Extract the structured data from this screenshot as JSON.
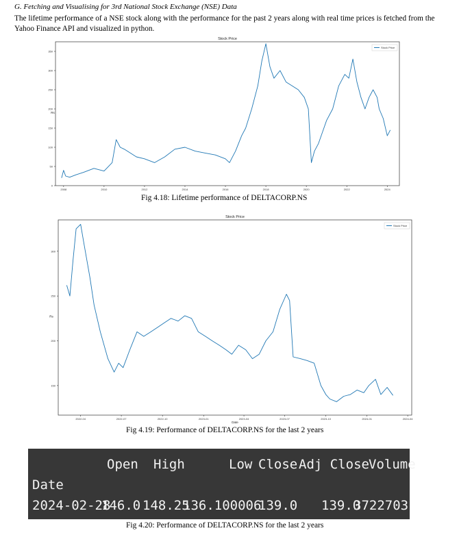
{
  "section": {
    "heading": "G.   Fetching and Visualising for 3rd National Stock Exchange (NSE) Data",
    "paragraph": "The lifetime performance of a NSE stock along with the performance for the past 2 years along with real time prices is fetched from the Yahoo Finance API and visualized in python."
  },
  "captions": {
    "fig1": "Fig 4.18: Lifetime performance of DELTACORP.NS",
    "fig2": "Fig 4.19: Performance of DELTACORP.NS for the last 2 years",
    "fig3": "Fig 4.20: Performance of DELTACORP.NS for the last 2 years"
  },
  "chart_data": [
    {
      "type": "line",
      "title": "Stock Price",
      "xlabel": "",
      "ylabel": "Rs",
      "legend": "top-right",
      "legend_label": "Stock Price",
      "color": "#1f77b4",
      "grid": false,
      "xlim": [
        2007.6,
        2024.6
      ],
      "ylim": [
        0,
        375
      ],
      "x_ticks": [
        "2008",
        "2010",
        "2012",
        "2014",
        "2016",
        "2018",
        "2020",
        "2022",
        "2024"
      ],
      "y_ticks": [
        0,
        50,
        100,
        150,
        200,
        250,
        300,
        350
      ],
      "x": [
        2007.9,
        2008.0,
        2008.1,
        2008.3,
        2008.6,
        2009.0,
        2009.5,
        2010.0,
        2010.4,
        2010.6,
        2010.8,
        2011.0,
        2011.3,
        2011.6,
        2012.0,
        2012.5,
        2013.0,
        2013.5,
        2014.0,
        2014.5,
        2015.0,
        2015.5,
        2016.0,
        2016.2,
        2016.5,
        2016.8,
        2017.0,
        2017.3,
        2017.6,
        2017.8,
        2018.0,
        2018.2,
        2018.4,
        2018.7,
        2019.0,
        2019.3,
        2019.6,
        2019.9,
        2020.1,
        2020.25,
        2020.4,
        2020.6,
        2020.8,
        2021.0,
        2021.3,
        2021.6,
        2021.9,
        2022.1,
        2022.3,
        2022.5,
        2022.7,
        2022.9,
        2023.1,
        2023.3,
        2023.5,
        2023.6,
        2023.8,
        2024.0,
        2024.15
      ],
      "y": [
        20,
        40,
        25,
        22,
        28,
        35,
        45,
        38,
        60,
        120,
        100,
        95,
        85,
        75,
        70,
        60,
        75,
        95,
        100,
        90,
        85,
        80,
        70,
        60,
        90,
        130,
        150,
        200,
        260,
        325,
        370,
        310,
        280,
        300,
        270,
        260,
        250,
        230,
        200,
        60,
        90,
        110,
        140,
        170,
        200,
        260,
        290,
        280,
        330,
        270,
        230,
        200,
        230,
        250,
        230,
        200,
        175,
        130,
        145
      ]
    },
    {
      "type": "line",
      "title": "Stock Price",
      "xlabel": "Date",
      "ylabel": "Rs",
      "legend": "top-right",
      "legend_label": "Stock Price",
      "color": "#1f77b4",
      "grid": false,
      "xlim": [
        "2022-02-10",
        "2024-04-10"
      ],
      "ylim": [
        117,
        335
      ],
      "x_ticks": [
        "2022-04",
        "2022-07",
        "2022-10",
        "2023-01",
        "2023-04",
        "2023-07",
        "2023-10",
        "2024-01",
        "2024-04"
      ],
      "y_ticks": [
        150,
        200,
        250,
        300
      ],
      "x": [
        "2022-03-01",
        "2022-03-08",
        "2022-03-15",
        "2022-03-22",
        "2022-04-01",
        "2022-04-08",
        "2022-04-15",
        "2022-04-22",
        "2022-05-01",
        "2022-05-15",
        "2022-06-01",
        "2022-06-15",
        "2022-06-25",
        "2022-07-05",
        "2022-07-20",
        "2022-08-05",
        "2022-08-20",
        "2022-09-05",
        "2022-09-20",
        "2022-10-05",
        "2022-10-20",
        "2022-11-05",
        "2022-11-20",
        "2022-12-05",
        "2022-12-20",
        "2023-01-05",
        "2023-01-20",
        "2023-02-05",
        "2023-02-20",
        "2023-03-05",
        "2023-03-20",
        "2023-04-05",
        "2023-04-20",
        "2023-05-05",
        "2023-05-20",
        "2023-06-05",
        "2023-06-20",
        "2023-07-05",
        "2023-07-12",
        "2023-07-20",
        "2023-08-05",
        "2023-08-20",
        "2023-09-05",
        "2023-09-20",
        "2023-10-01",
        "2023-10-10",
        "2023-10-25",
        "2023-11-10",
        "2023-11-25",
        "2023-12-10",
        "2023-12-25",
        "2024-01-05",
        "2024-01-20",
        "2024-02-01",
        "2024-02-15",
        "2024-02-28"
      ],
      "y": [
        262,
        250,
        290,
        325,
        330,
        310,
        290,
        270,
        240,
        210,
        180,
        165,
        175,
        170,
        190,
        210,
        205,
        210,
        215,
        220,
        225,
        222,
        228,
        225,
        210,
        205,
        200,
        195,
        190,
        185,
        195,
        190,
        180,
        185,
        200,
        210,
        235,
        252,
        245,
        182,
        180,
        178,
        175,
        150,
        140,
        135,
        132,
        138,
        140,
        145,
        142,
        150,
        157,
        140,
        148,
        139
      ]
    }
  ],
  "table": {
    "headers": [
      "Open",
      "High",
      "Low",
      "Close",
      "Adj Close",
      "Volume"
    ],
    "index_label": "Date",
    "row": {
      "date": "2024-02-28",
      "values": [
        "146.0",
        "148.25",
        "136.100006",
        "139.0",
        "139.0",
        "3722703"
      ]
    }
  }
}
